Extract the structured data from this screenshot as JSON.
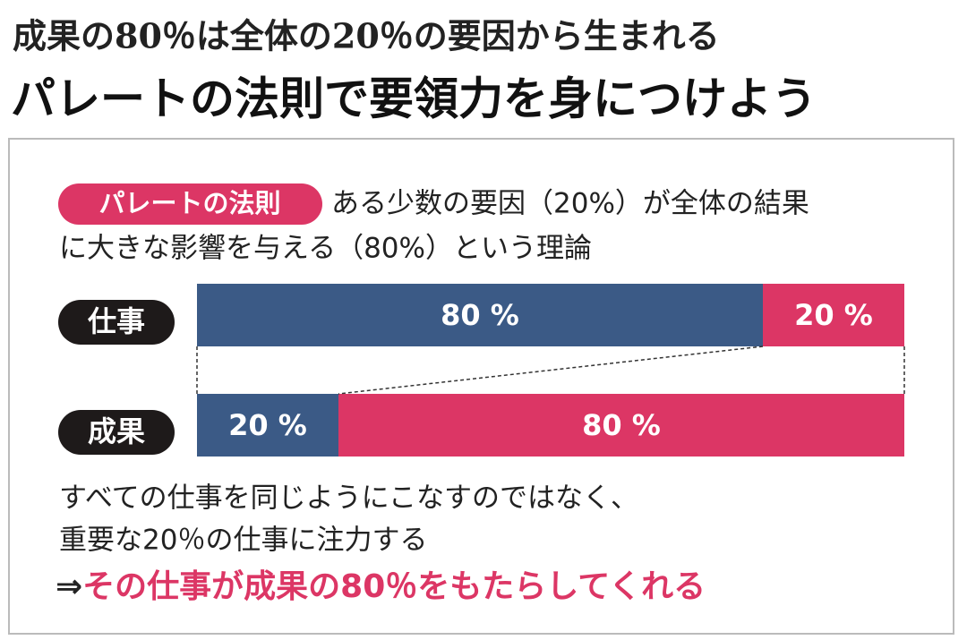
{
  "header": {
    "title": "成果の80％は全体の20％の要因から生まれる",
    "subtitle": "パレートの法則で要領力を身につけよう"
  },
  "chart_data": {
    "type": "bar",
    "orientation": "horizontal",
    "stacked": true,
    "badge": "パレートの法則",
    "description": [
      "ある少数の要因（20%）が全体の結果",
      "に大きな影響を与える（80%）という理論"
    ],
    "categories": [
      "仕事",
      "成果"
    ],
    "series": [
      {
        "color": "#3b5a86",
        "values": [
          80,
          20
        ],
        "value_labels": [
          "80 %",
          "20 %"
        ]
      },
      {
        "color": "#dc3665",
        "values": [
          20,
          80
        ],
        "value_labels": [
          "20 %",
          "80 %"
        ]
      }
    ],
    "conclusion": [
      "すべての仕事を同じようにこなすのではなく、",
      "重要な20％の仕事に注力する"
    ],
    "conclusion_arrow": "⇒",
    "conclusion_emphasis": "その仕事が成果の80％をもたらしてくれる"
  }
}
